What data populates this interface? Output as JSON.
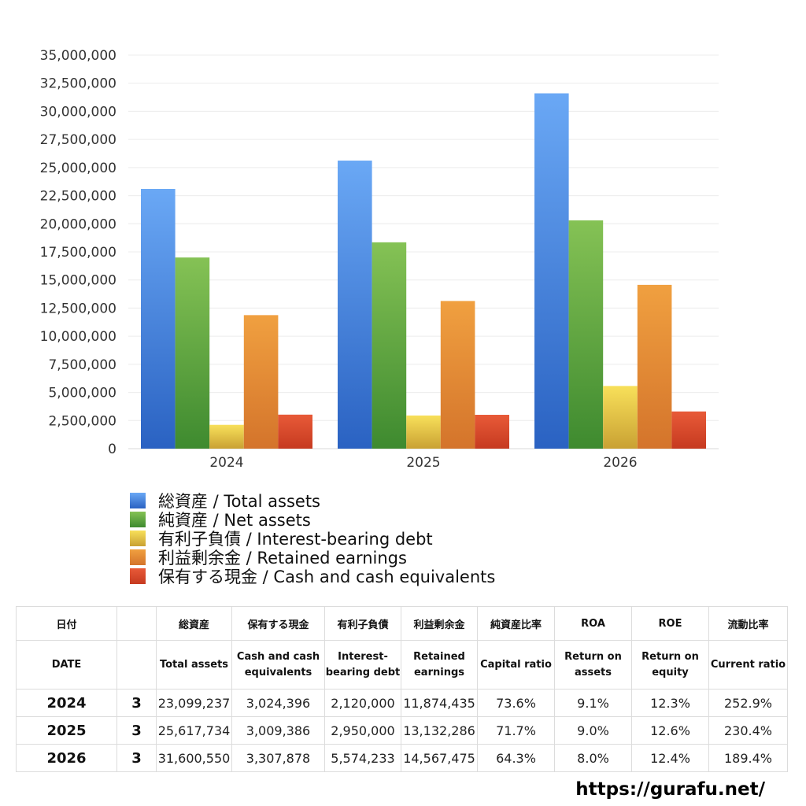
{
  "chart_data": {
    "type": "bar",
    "categories": [
      "2024",
      "2025",
      "2026"
    ],
    "series": [
      {
        "name": "総資産 / Total assets",
        "values": [
          23099237,
          25617734,
          31600550
        ],
        "color_top": "#6aa8f5",
        "color_bottom": "#2a62c2"
      },
      {
        "name": "純資産 / Net assets",
        "values": [
          17000000,
          18350000,
          20300000
        ],
        "color_top": "#85c255",
        "color_bottom": "#3e8a2f"
      },
      {
        "name": "有利子負債 / Interest-bearing debt",
        "values": [
          2120000,
          2950000,
          5574233
        ],
        "color_top": "#f8e05a",
        "color_bottom": "#c9a133"
      },
      {
        "name": "利益剰余金 / Retained earnings",
        "values": [
          11874435,
          13132286,
          14567475
        ],
        "color_top": "#f0a040",
        "color_bottom": "#d4742b"
      },
      {
        "name": "保有する現金 /  Cash and cash equivalents",
        "values": [
          3024396,
          3009386,
          3307878
        ],
        "color_top": "#e85a38",
        "color_bottom": "#c63a20"
      }
    ],
    "ylim": [
      0,
      35000000
    ],
    "yticks": [
      "0",
      "2,500,000",
      "5,000,000",
      "7,500,000",
      "10,000,000",
      "12,500,000",
      "15,000,000",
      "17,500,000",
      "20,000,000",
      "22,500,000",
      "25,000,000",
      "27,500,000",
      "30,000,000",
      "32,500,000",
      "35,000,000"
    ],
    "grid": true,
    "legend_position": "bottom"
  },
  "table": {
    "headers_jp": [
      "日付",
      "",
      "総資産",
      "保有する現金",
      "有利子負債",
      "利益剰余金",
      "純資産比率",
      "ROA",
      "ROE",
      "流動比率"
    ],
    "headers_en": [
      "DATE",
      "",
      "Total assets",
      "Cash and cash equivalents",
      "Interest-bearing debt",
      "Retained earnings",
      "Capital ratio",
      "Return on assets",
      "Return on equity",
      "Current ratio"
    ],
    "rows": [
      [
        "2024",
        "3",
        "23,099,237",
        "3,024,396",
        "2,120,000",
        "11,874,435",
        "73.6%",
        "9.1%",
        "12.3%",
        "252.9%"
      ],
      [
        "2025",
        "3",
        "25,617,734",
        "3,009,386",
        "2,950,000",
        "13,132,286",
        "71.7%",
        "9.0%",
        "12.6%",
        "230.4%"
      ],
      [
        "2026",
        "3",
        "31,600,550",
        "3,307,878",
        "5,574,233",
        "14,567,475",
        "64.3%",
        "8.0%",
        "12.4%",
        "189.4%"
      ]
    ]
  },
  "footer": {
    "url": "https://gurafu.net/"
  }
}
